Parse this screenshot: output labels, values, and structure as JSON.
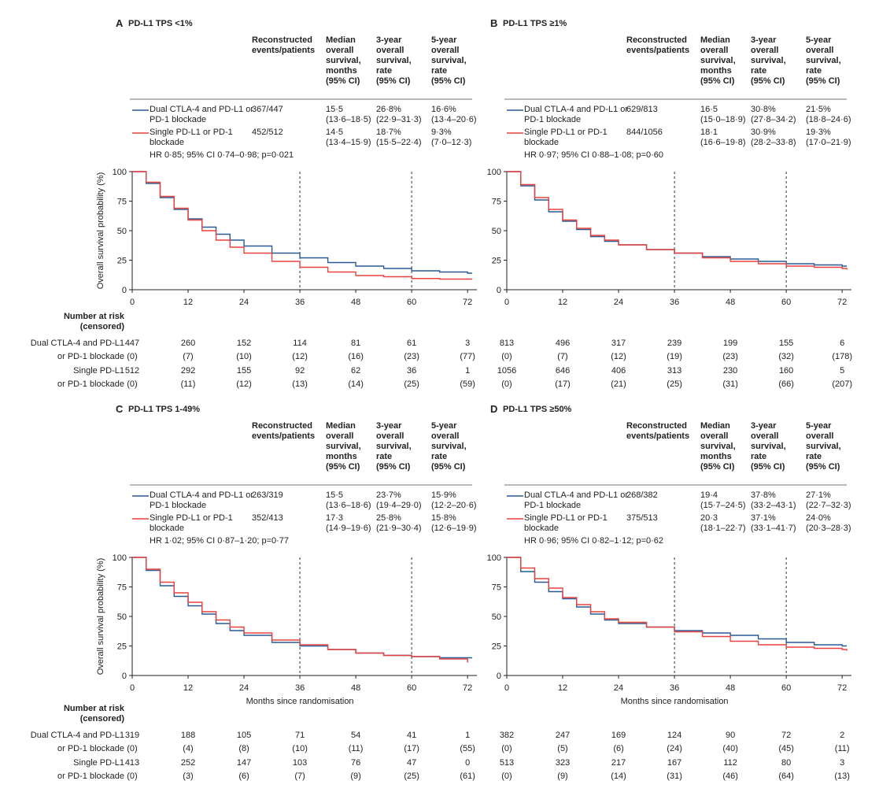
{
  "chart_data": [
    {
      "type": "line",
      "label": "A",
      "title": "PD-L1 TPS <1%",
      "columns": [
        [
          "Reconstructed",
          "events/patients"
        ],
        [
          "Median",
          "overall",
          "survival,",
          "months",
          "(95% CI)"
        ],
        [
          "3-year",
          "overall",
          "survival,",
          "rate",
          "(95% CI)"
        ],
        [
          "5-year",
          "overall",
          "survival,",
          "rate",
          "(95% CI)"
        ]
      ],
      "hr": "HR 0·85; 95% CI 0·74–0·98; p=0·021",
      "x": [
        0,
        3,
        6,
        9,
        12,
        15,
        18,
        21,
        24,
        30,
        36,
        42,
        48,
        54,
        60,
        66,
        72,
        73
      ],
      "series": [
        {
          "name": "Dual CTLA-4 and PD-L1 or PD-1 blockade",
          "color": "#2a5a96",
          "values": [
            100,
            90,
            78,
            68,
            60,
            53,
            47,
            42,
            37,
            31,
            27,
            23,
            20,
            18,
            16,
            15,
            14,
            14
          ],
          "events": "367/447",
          "median": [
            "15·5",
            "(13·6–18·5)"
          ],
          "os3": [
            "26·8%",
            "(22·9–31·3)"
          ],
          "os5": [
            "16·6%",
            "(13·4–20·6)"
          ],
          "risk_label": [
            "Dual CTLA-4 and PD-L1",
            "or PD-1 blockade"
          ],
          "at_risk": [
            447,
            260,
            152,
            114,
            81,
            61,
            3
          ],
          "censored": [
            "(0)",
            "(7)",
            "(10)",
            "(12)",
            "(16)",
            "(23)",
            "(77)"
          ]
        },
        {
          "name": "Single PD-L1 or PD-1 blockade",
          "color": "#e8423f",
          "values": [
            100,
            91,
            79,
            69,
            59,
            50,
            42,
            36,
            31,
            24,
            19,
            15,
            12,
            11,
            9.5,
            9,
            9,
            9
          ],
          "events": "452/512",
          "median": [
            "14·5",
            "(13·4–15·9)"
          ],
          "os3": [
            "18·7%",
            "(15·5–22·4)"
          ],
          "os5": [
            "9·3%",
            "(7·0–12·3)"
          ],
          "risk_label": [
            "Single PD-L1",
            "or PD-1 blockade"
          ],
          "at_risk": [
            512,
            292,
            155,
            92,
            62,
            36,
            1
          ],
          "censored": [
            "(0)",
            "(11)",
            "(12)",
            "(13)",
            "(14)",
            "(25)",
            "(59)"
          ]
        }
      ],
      "ylabel": "Overall survival probability (%)",
      "xlim": [
        0,
        74
      ],
      "xticks": [
        0,
        12,
        24,
        36,
        48,
        60,
        72
      ],
      "ylim": [
        0,
        100
      ],
      "yticks": [
        0,
        25,
        50,
        75,
        100
      ],
      "vlines": [
        36,
        60
      ],
      "risk_title": [
        "Number at risk",
        "(censored)"
      ]
    },
    {
      "type": "line",
      "label": "B",
      "title": "PD-L1 TPS ≥1%",
      "columns": [
        [
          "Reconstructed",
          "events/patients"
        ],
        [
          "Median",
          "overall",
          "survival,",
          "months",
          "(95% CI)"
        ],
        [
          "3-year",
          "overall",
          "survival,",
          "rate",
          "(95% CI)"
        ],
        [
          "5-year",
          "overall",
          "survival,",
          "rate",
          "(95% CI)"
        ]
      ],
      "hr": "HR 0·97; 95% CI 0·88–1·08; p=0·60",
      "x": [
        0,
        3,
        6,
        9,
        12,
        15,
        18,
        21,
        24,
        30,
        36,
        42,
        48,
        54,
        60,
        66,
        72,
        73
      ],
      "series": [
        {
          "name": "Dual CTLA-4 and PD-L1 or PD-1 blockade",
          "color": "#2a5a96",
          "values": [
            100,
            88,
            76,
            66,
            58,
            51,
            45,
            41,
            38,
            34,
            31,
            28,
            26,
            24,
            22,
            21,
            20,
            20
          ],
          "events": "629/813",
          "median": [
            "16·5",
            "(15·0–18·9)"
          ],
          "os3": [
            "30·8%",
            "(27·8–34·2)"
          ],
          "os5": [
            "21·5%",
            "(18·8–24·6)"
          ],
          "at_risk": [
            813,
            496,
            317,
            239,
            199,
            155,
            6
          ],
          "censored": [
            "(0)",
            "(7)",
            "(12)",
            "(19)",
            "(23)",
            "(32)",
            "(178)"
          ]
        },
        {
          "name": "Single PD-L1 or PD-1 blockade",
          "color": "#e8423f",
          "values": [
            100,
            89,
            78,
            68,
            59,
            52,
            46,
            42,
            38,
            34,
            31,
            27,
            24,
            22,
            20,
            19,
            18,
            17
          ],
          "events": "844/1056",
          "median": [
            "18·1",
            "(16·6–19·8)"
          ],
          "os3": [
            "30·9%",
            "(28·2–33·8)"
          ],
          "os5": [
            "19·3%",
            "(17·0–21·9)"
          ],
          "at_risk": [
            1056,
            646,
            406,
            313,
            230,
            160,
            5
          ],
          "censored": [
            "(0)",
            "(17)",
            "(21)",
            "(25)",
            "(31)",
            "(66)",
            "(207)"
          ]
        }
      ],
      "xlim": [
        0,
        74
      ],
      "xticks": [
        0,
        12,
        24,
        36,
        48,
        60,
        72
      ],
      "ylim": [
        0,
        100
      ],
      "yticks": [
        0,
        25,
        50,
        75,
        100
      ],
      "vlines": [
        36,
        60
      ]
    },
    {
      "type": "line",
      "label": "C",
      "title": "PD-L1 TPS 1-49%",
      "columns": [
        [
          "Reconstructed",
          "events/patients"
        ],
        [
          "Median",
          "overall",
          "survival,",
          "months",
          "(95% CI)"
        ],
        [
          "3-year",
          "overall",
          "survival,",
          "rate",
          "(95% CI)"
        ],
        [
          "5-year",
          "overall",
          "survival,",
          "rate",
          "(95% CI)"
        ]
      ],
      "hr": "HR 1·02; 95% CI 0·87–1·20; p=0·77",
      "x": [
        0,
        3,
        6,
        9,
        12,
        15,
        18,
        21,
        24,
        30,
        36,
        42,
        48,
        54,
        60,
        66,
        72,
        73
      ],
      "series": [
        {
          "name": "Dual CTLA-4 and PD-L1 or PD-1 blockade",
          "color": "#2a5a96",
          "values": [
            100,
            89,
            76,
            67,
            59,
            52,
            44,
            38,
            34,
            28,
            25,
            22,
            19,
            17,
            16,
            15,
            15,
            15
          ],
          "events": "263/319",
          "median": [
            "15·5",
            "(13·6–18·6)"
          ],
          "os3": [
            "23·7%",
            "(19·4–29·0)"
          ],
          "os5": [
            "15·9%",
            "(12·2–20·6)"
          ],
          "risk_label": [
            "Dual CTLA-4 and PD-L1",
            "or PD-1 blockade"
          ],
          "at_risk": [
            319,
            188,
            105,
            71,
            54,
            41,
            1
          ],
          "censored": [
            "(0)",
            "(4)",
            "(8)",
            "(10)",
            "(11)",
            "(17)",
            "(55)"
          ]
        },
        {
          "name": "Single PD-L1 or PD-1 blockade",
          "color": "#e8423f",
          "values": [
            100,
            90,
            79,
            70,
            62,
            54,
            47,
            41,
            36,
            30,
            26,
            22,
            19,
            17,
            16,
            14,
            11,
            null
          ],
          "events": "352/413",
          "median": [
            "17·3",
            "(14·9–19·6)"
          ],
          "os3": [
            "25·8%",
            "(21·9–30·4)"
          ],
          "os5": [
            "15·8%",
            "(12·6–19·9)"
          ],
          "risk_label": [
            "Single PD-L1",
            "or PD-1 blockade"
          ],
          "at_risk": [
            413,
            252,
            147,
            103,
            76,
            47,
            0
          ],
          "censored": [
            "(0)",
            "(3)",
            "(6)",
            "(7)",
            "(9)",
            "(25)",
            "(61)"
          ]
        }
      ],
      "ylabel": "Overall survival probability (%)",
      "xlabel": "Months since randomisation",
      "xlim": [
        0,
        74
      ],
      "xticks": [
        0,
        12,
        24,
        36,
        48,
        60,
        72
      ],
      "ylim": [
        0,
        100
      ],
      "yticks": [
        0,
        25,
        50,
        75,
        100
      ],
      "vlines": [
        36,
        60
      ],
      "risk_title": [
        "Number at risk",
        "(censored)"
      ]
    },
    {
      "type": "line",
      "label": "D",
      "title": "PD-L1 TPS ≥50%",
      "columns": [
        [
          "Reconstructed",
          "events/patients"
        ],
        [
          "Median",
          "overall",
          "survival,",
          "months",
          "(95% CI)"
        ],
        [
          "3-year",
          "overall",
          "survival,",
          "rate",
          "(95% CI)"
        ],
        [
          "5-year",
          "overall",
          "survival,",
          "rate",
          "(95% CI)"
        ]
      ],
      "hr": "HR 0·96; 95% CI 0·82–1·12; p=0·62",
      "x": [
        0,
        3,
        6,
        9,
        12,
        15,
        18,
        21,
        24,
        30,
        36,
        42,
        48,
        54,
        60,
        66,
        72,
        73
      ],
      "series": [
        {
          "name": "Dual CTLA-4 and PD-L1 or PD-1 blockade",
          "color": "#2a5a96",
          "values": [
            100,
            88,
            79,
            71,
            65,
            58,
            52,
            47,
            44,
            41,
            38,
            36,
            34,
            31,
            28,
            26,
            25,
            25
          ],
          "events": "268/382",
          "median": [
            "19·4",
            "(15·7–24·5)"
          ],
          "os3": [
            "37·8%",
            "(33·2–43·1)"
          ],
          "os5": [
            "27·1%",
            "(22·7–32·3)"
          ],
          "at_risk": [
            382,
            247,
            169,
            124,
            90,
            72,
            2
          ],
          "censored": [
            "(0)",
            "(5)",
            "(6)",
            "(24)",
            "(40)",
            "(45)",
            "(11)"
          ]
        },
        {
          "name": "Single PD-L1 or PD-1 blockade",
          "color": "#e8423f",
          "values": [
            100,
            91,
            82,
            74,
            66,
            60,
            54,
            48,
            45,
            41,
            37,
            33,
            29,
            26,
            24,
            23,
            22,
            21
          ],
          "events": "375/513",
          "median": [
            "20·3",
            "(18·1–22·7)"
          ],
          "os3": [
            "37·1%",
            "(33·1–41·7)"
          ],
          "os5": [
            "24·0%",
            "(20·3–28·3)"
          ],
          "at_risk": [
            513,
            323,
            217,
            167,
            112,
            80,
            3
          ],
          "censored": [
            "(0)",
            "(9)",
            "(14)",
            "(31)",
            "(46)",
            "(64)",
            "(13)"
          ]
        }
      ],
      "xlabel": "Months since randomisation",
      "xlim": [
        0,
        74
      ],
      "xticks": [
        0,
        12,
        24,
        36,
        48,
        60,
        72
      ],
      "ylim": [
        0,
        100
      ],
      "yticks": [
        0,
        25,
        50,
        75,
        100
      ],
      "vlines": [
        36,
        60
      ]
    }
  ]
}
